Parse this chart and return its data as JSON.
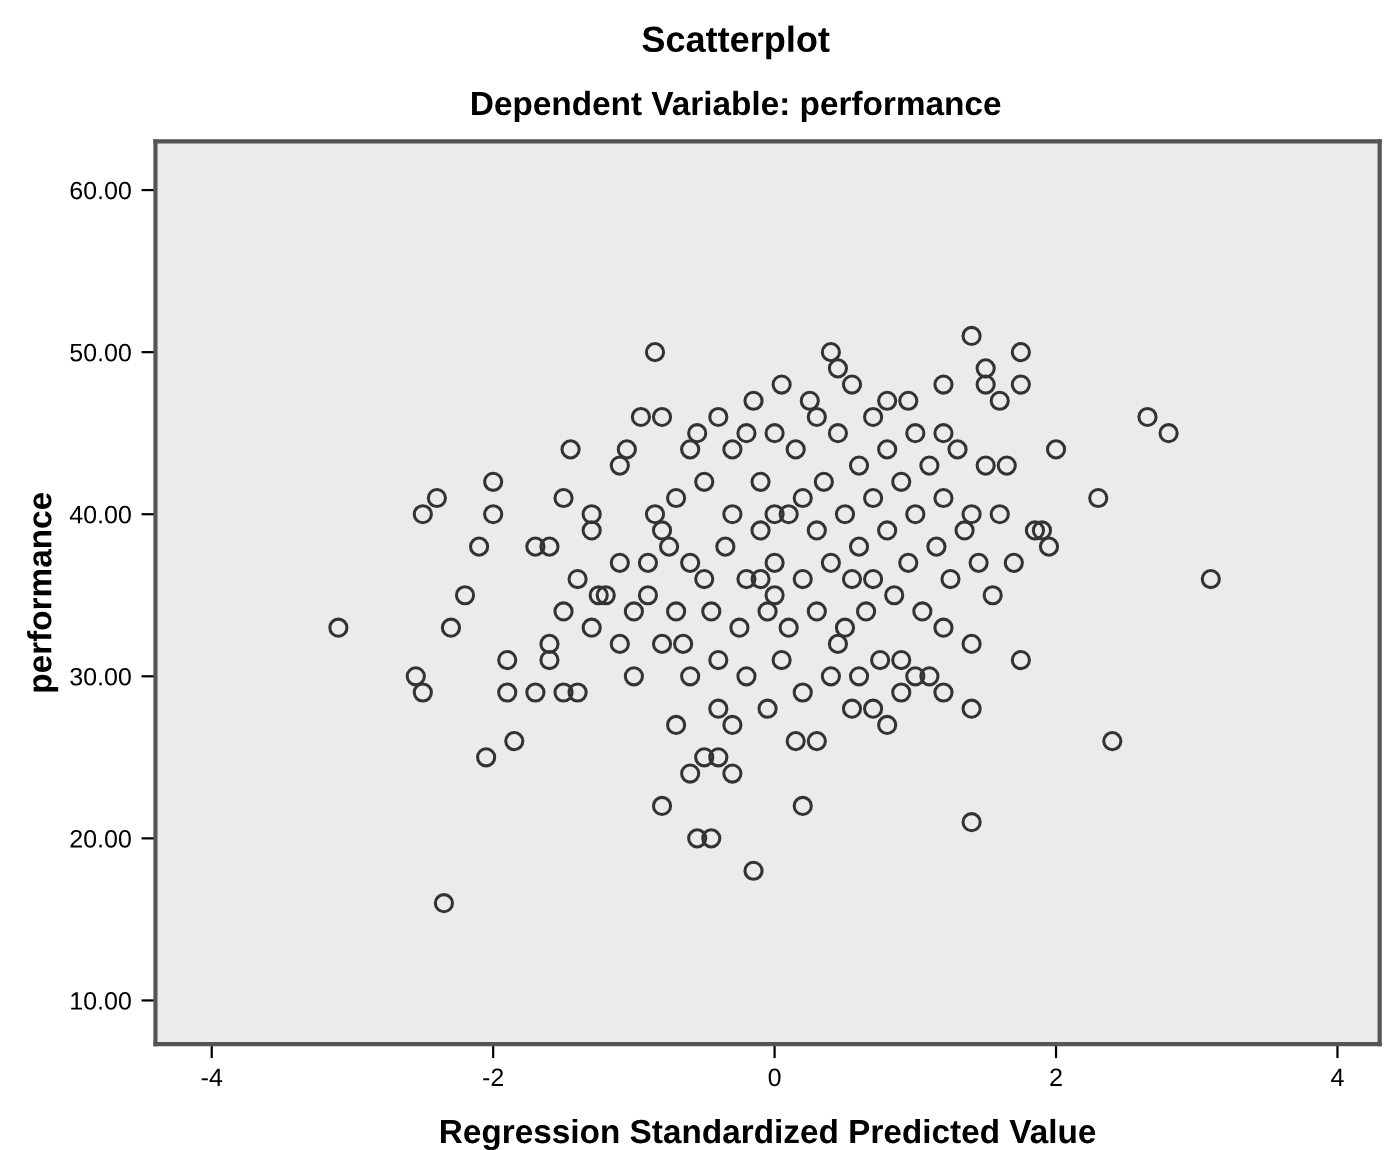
{
  "chart_data": {
    "type": "scatter",
    "title": "Scatterplot",
    "subtitle": "Dependent Variable: performance",
    "xlabel": "Regression Standardized Predicted Value",
    "ylabel": "performance",
    "xlim": [
      -4.4,
      4.3
    ],
    "ylim": [
      7.3,
      63
    ],
    "xticks": [
      -4,
      -2,
      0,
      2,
      4
    ],
    "yticks": [
      {
        "value": 10,
        "label": "10.00"
      },
      {
        "value": 20,
        "label": "20.00"
      },
      {
        "value": 30,
        "label": "30.00"
      },
      {
        "value": 40,
        "label": "40.00"
      },
      {
        "value": 50,
        "label": "50.00"
      },
      {
        "value": 60,
        "label": "60.00"
      }
    ],
    "grid": false,
    "marker": "circle",
    "legend": false,
    "series": [
      {
        "color": "#333333",
        "x": [
          -3.1,
          -2.55,
          -2.5,
          -2.5,
          -2.4,
          -2.05,
          -1.85,
          -2.1,
          -2.0,
          -2.0,
          -2.3,
          -2.2,
          -2.35,
          -1.9,
          -1.9,
          -1.7,
          -1.6,
          -1.5,
          -1.4,
          -1.7,
          -1.6,
          -1.45,
          -1.3,
          -1.3,
          -1.25,
          -1.1,
          -1.05,
          -0.95,
          -0.8,
          -0.85,
          -0.8,
          -0.55,
          -0.45,
          -0.15,
          0.2,
          0.3,
          -0.6,
          -0.5,
          -0.4,
          -0.3,
          -0.7,
          0.0,
          1.4,
          1.75,
          1.5,
          1.75,
          1.5,
          1.6,
          1.2,
          0.4,
          0.45,
          0.55,
          0.95,
          0.8,
          2.65,
          2.8,
          2.0,
          2.3,
          1.65,
          1.4,
          1.85,
          1.9,
          1.95,
          3.1,
          1.4,
          1.75,
          1.4,
          1.4,
          2.4,
          1.2,
          1.0,
          1.1,
          0.9,
          0.6,
          0.7,
          0.8,
          -1.2,
          -1.1,
          -1.0,
          -1.0,
          -0.9,
          -0.9,
          -0.85,
          -0.8,
          -0.75,
          -0.7,
          -0.7,
          -0.65,
          -0.6,
          -0.55,
          -0.5,
          -0.5,
          -0.45,
          -0.4,
          -0.4,
          -0.35,
          -0.3,
          -0.3,
          -0.25,
          -0.2,
          -0.2,
          -0.15,
          -0.1,
          -0.1,
          -0.05,
          -0.05,
          0.0,
          0.0,
          0.05,
          0.1,
          0.1,
          0.15,
          0.2,
          0.2,
          0.25,
          0.3,
          0.3,
          0.35,
          0.4,
          0.4,
          0.45,
          0.5,
          0.5,
          0.55,
          0.6,
          0.6,
          0.65,
          0.7,
          0.7,
          0.75,
          0.8,
          0.8,
          0.85,
          0.9,
          0.95,
          1.0,
          1.0,
          1.05,
          1.1,
          1.15,
          1.2,
          1.25,
          1.3,
          1.35,
          1.45,
          1.5,
          1.55,
          1.6,
          1.7,
          -0.6,
          -0.8,
          -1.1,
          -0.3,
          0.15,
          0.55,
          -0.2,
          0.05,
          -0.4,
          0.3,
          0.7,
          1.2,
          -1.3,
          -1.5,
          -1.4,
          -1.6,
          -1.5,
          0.9,
          1.2,
          -0.6,
          0.2,
          0.0,
          -0.1,
          0.45
        ],
        "values": [
          33,
          30,
          29,
          40,
          41,
          25,
          26,
          38,
          40,
          42,
          33,
          35,
          16,
          31,
          29,
          29,
          32,
          29,
          29,
          38,
          38,
          44,
          40,
          39,
          35,
          43,
          44,
          46,
          46,
          50,
          22,
          20,
          20,
          18,
          22,
          26,
          24,
          25,
          25,
          24,
          27,
          35,
          51,
          50,
          49,
          48,
          48,
          47,
          48,
          50,
          49,
          48,
          47,
          47,
          46,
          45,
          44,
          41,
          43,
          40,
          39,
          39,
          38,
          36,
          32,
          31,
          28,
          21,
          26,
          29,
          30,
          30,
          31,
          30,
          28,
          27,
          35,
          32,
          34,
          30,
          35,
          37,
          40,
          39,
          38,
          41,
          34,
          32,
          44,
          45,
          42,
          36,
          34,
          31,
          28,
          38,
          44,
          40,
          33,
          36,
          30,
          47,
          42,
          39,
          34,
          28,
          45,
          37,
          31,
          40,
          33,
          44,
          36,
          29,
          47,
          39,
          34,
          42,
          37,
          30,
          45,
          40,
          33,
          36,
          43,
          38,
          34,
          41,
          36,
          31,
          44,
          39,
          35,
          42,
          37,
          45,
          40,
          34,
          43,
          38,
          41,
          36,
          44,
          39,
          37,
          43,
          35,
          40,
          37,
          30,
          32,
          37,
          27,
          26,
          28,
          45,
          48,
          46,
          46,
          46,
          45,
          33,
          34,
          36,
          31,
          41,
          29,
          33,
          37,
          41,
          40,
          36,
          32
        ]
      }
    ]
  }
}
